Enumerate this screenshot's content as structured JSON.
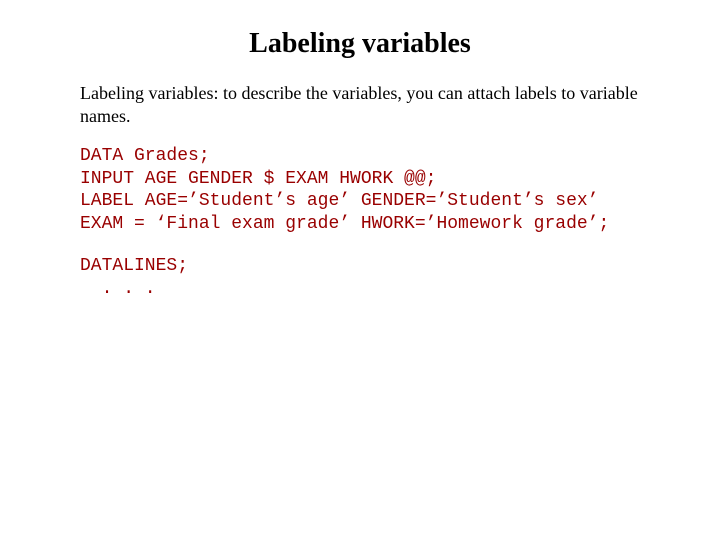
{
  "title": "Labeling variables",
  "intro": "Labeling variables: to describe the variables, you can attach labels to variable names.",
  "code": {
    "line1": "DATA Grades;",
    "line2": "INPUT AGE GENDER $ EXAM HWORK @@;",
    "line3": "LABEL AGE=’Student’s age’ GENDER=’Student’s sex’",
    "line4": "EXAM = ‘Final exam grade’ HWORK=’Homework grade’;",
    "line5": "DATALINES;",
    "line6": "  . . ."
  },
  "colors": {
    "text": "#000000",
    "code": "#990000",
    "background": "#ffffff"
  },
  "typography": {
    "title_fontsize_pt": 21,
    "body_fontsize_pt": 13,
    "code_fontsize_pt": 13,
    "title_font": "Times New Roman",
    "body_font": "Times New Roman",
    "code_font": "Courier New"
  }
}
